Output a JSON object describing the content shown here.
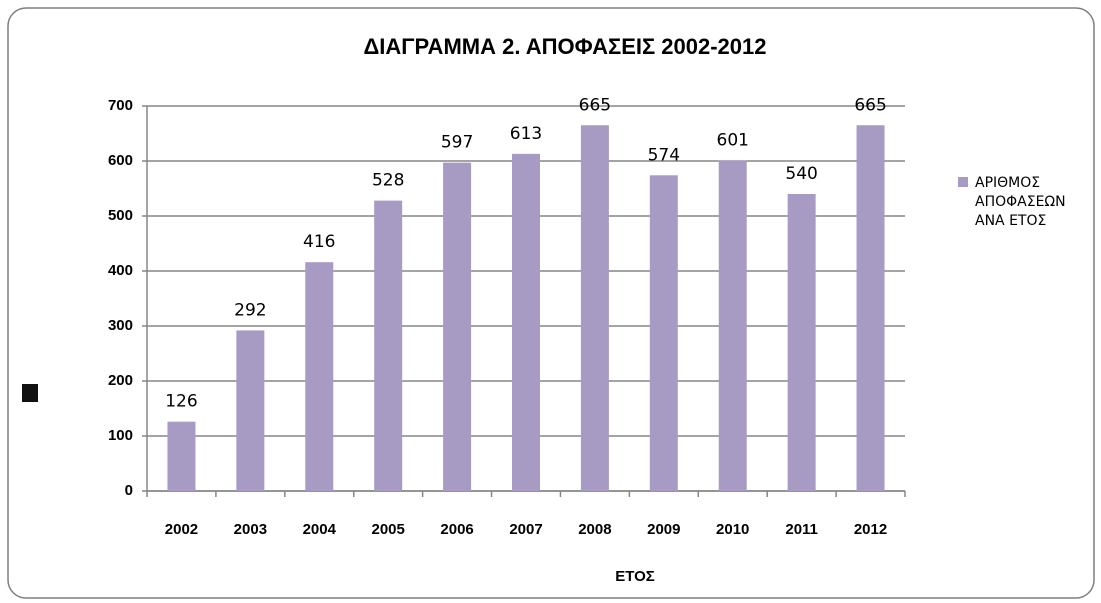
{
  "chart_data": {
    "type": "bar",
    "title": "ΔΙΑΓΡΑΜΜΑ 2. ΑΠΟΦΑΣΕΙΣ 2002-2012",
    "x_label": "ΕΤΟΣ",
    "categories": [
      "2002",
      "2003",
      "2004",
      "2005",
      "2006",
      "2007",
      "2008",
      "2009",
      "2010",
      "2011",
      "2012"
    ],
    "series": [
      {
        "name": "ΑΡΙΘΜΟΣ ΑΠΟΦΑΣΕΩΝ ΑΝΑ ΕΤΟΣ",
        "color": "#a89bc3",
        "values": [
          126,
          292,
          416,
          528,
          597,
          613,
          665,
          574,
          601,
          540,
          665
        ]
      }
    ],
    "ylim": [
      0,
      700
    ],
    "yticks": [
      0,
      100,
      200,
      300,
      400,
      500,
      600,
      700
    ],
    "grid": true,
    "legend": "right"
  }
}
